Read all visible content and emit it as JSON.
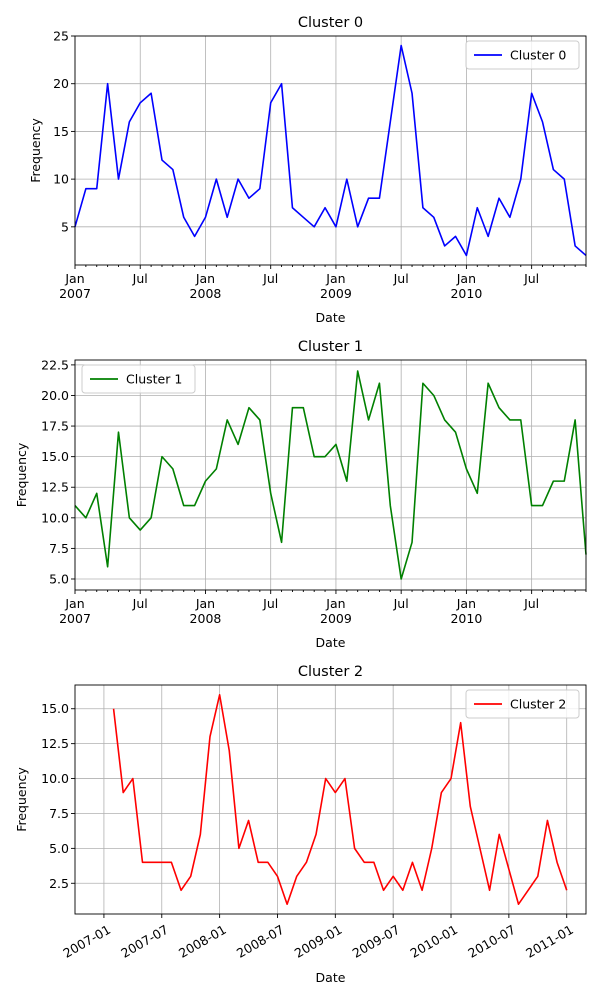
{
  "chart_data": [
    {
      "type": "line",
      "title": "Cluster 0",
      "xlabel": "Date",
      "ylabel": "Frequency",
      "x_axis_style": "monthly",
      "x_range": [
        "2007-01",
        "2010-12"
      ],
      "ylim": [
        1,
        25
      ],
      "yticks": [
        5,
        10,
        15,
        20,
        25
      ],
      "ytick_labels": [
        "5",
        "10",
        "15",
        "20",
        "25"
      ],
      "xticks": [
        {
          "date": "2007-01",
          "label": [
            "Jan",
            "2007"
          ]
        },
        {
          "date": "2007-07",
          "label": [
            "Jul"
          ]
        },
        {
          "date": "2008-01",
          "label": [
            "Jan",
            "2008"
          ]
        },
        {
          "date": "2008-07",
          "label": [
            "Jul"
          ]
        },
        {
          "date": "2009-01",
          "label": [
            "Jan",
            "2009"
          ]
        },
        {
          "date": "2009-07",
          "label": [
            "Jul"
          ]
        },
        {
          "date": "2010-01",
          "label": [
            "Jan",
            "2010"
          ]
        },
        {
          "date": "2010-07",
          "label": [
            "Jul"
          ]
        }
      ],
      "grid": true,
      "legend": "upper-right",
      "series": [
        {
          "name": "Cluster 0",
          "color": "#0000ff",
          "x": [
            "2007-01",
            "2007-02",
            "2007-03",
            "2007-04",
            "2007-05",
            "2007-06",
            "2007-07",
            "2007-08",
            "2007-09",
            "2007-10",
            "2007-11",
            "2007-12",
            "2008-01",
            "2008-02",
            "2008-03",
            "2008-04",
            "2008-05",
            "2008-06",
            "2008-07",
            "2008-08",
            "2008-09",
            "2008-10",
            "2008-11",
            "2008-12",
            "2009-01",
            "2009-02",
            "2009-03",
            "2009-04",
            "2009-05",
            "2009-06",
            "2009-07",
            "2009-08",
            "2009-09",
            "2009-10",
            "2009-11",
            "2009-12",
            "2010-01",
            "2010-02",
            "2010-03",
            "2010-04",
            "2010-05",
            "2010-06",
            "2010-07",
            "2010-08",
            "2010-09",
            "2010-10",
            "2010-11",
            "2010-12"
          ],
          "values": [
            5,
            9,
            9,
            20,
            10,
            16,
            18,
            19,
            12,
            11,
            6,
            4,
            6,
            10,
            6,
            10,
            8,
            9,
            18,
            20,
            7,
            6,
            5,
            7,
            5,
            10,
            5,
            8,
            8,
            16,
            24,
            19,
            7,
            6,
            3,
            4,
            2,
            7,
            4,
            8,
            6,
            10,
            19,
            16,
            11,
            10,
            3,
            2
          ]
        }
      ]
    },
    {
      "type": "line",
      "title": "Cluster 1",
      "xlabel": "Date",
      "ylabel": "Frequency",
      "x_axis_style": "monthly",
      "x_range": [
        "2007-01",
        "2010-12"
      ],
      "ylim": [
        4.1,
        22.9
      ],
      "yticks": [
        5,
        7.5,
        10,
        12.5,
        15,
        17.5,
        20,
        22.5
      ],
      "ytick_labels": [
        "5.0",
        "7.5",
        "10.0",
        "12.5",
        "15.0",
        "17.5",
        "20.0",
        "22.5"
      ],
      "xticks": [
        {
          "date": "2007-01",
          "label": [
            "Jan",
            "2007"
          ]
        },
        {
          "date": "2007-07",
          "label": [
            "Jul"
          ]
        },
        {
          "date": "2008-01",
          "label": [
            "Jan",
            "2008"
          ]
        },
        {
          "date": "2008-07",
          "label": [
            "Jul"
          ]
        },
        {
          "date": "2009-01",
          "label": [
            "Jan",
            "2009"
          ]
        },
        {
          "date": "2009-07",
          "label": [
            "Jul"
          ]
        },
        {
          "date": "2010-01",
          "label": [
            "Jan",
            "2010"
          ]
        },
        {
          "date": "2010-07",
          "label": [
            "Jul"
          ]
        }
      ],
      "grid": true,
      "legend": "upper-left",
      "series": [
        {
          "name": "Cluster 1",
          "color": "#008000",
          "x": [
            "2007-01",
            "2007-02",
            "2007-03",
            "2007-04",
            "2007-05",
            "2007-06",
            "2007-07",
            "2007-08",
            "2007-09",
            "2007-10",
            "2007-11",
            "2007-12",
            "2008-01",
            "2008-02",
            "2008-03",
            "2008-04",
            "2008-05",
            "2008-06",
            "2008-07",
            "2008-08",
            "2008-09",
            "2008-10",
            "2008-11",
            "2008-12",
            "2009-01",
            "2009-02",
            "2009-03",
            "2009-04",
            "2009-05",
            "2009-06",
            "2009-07",
            "2009-08",
            "2009-09",
            "2009-10",
            "2009-11",
            "2009-12",
            "2010-01",
            "2010-02",
            "2010-03",
            "2010-04",
            "2010-05",
            "2010-06",
            "2010-07",
            "2010-08",
            "2010-09",
            "2010-10",
            "2010-11",
            "2010-12"
          ],
          "values": [
            11,
            10,
            12,
            6,
            17,
            10,
            9,
            10,
            15,
            14,
            11,
            11,
            13,
            14,
            18,
            16,
            19,
            18,
            12,
            8,
            19,
            19,
            15,
            15,
            16,
            13,
            22,
            18,
            21,
            11,
            5,
            8,
            21,
            20,
            18,
            17,
            14,
            12,
            21,
            19,
            18,
            18,
            11,
            11,
            13,
            13,
            18,
            7
          ]
        }
      ]
    },
    {
      "type": "line",
      "title": "Cluster 2",
      "xlabel": "Date",
      "ylabel": "Frequency",
      "x_axis_style": "rotated",
      "x_range": [
        "2006-10",
        "2011-03"
      ],
      "ylim": [
        0.3,
        16.7
      ],
      "yticks": [
        2.5,
        5,
        7.5,
        10,
        12.5,
        15
      ],
      "ytick_labels": [
        "2.5",
        "5.0",
        "7.5",
        "10.0",
        "12.5",
        "15.0"
      ],
      "xticks": [
        {
          "date": "2007-01",
          "label": [
            "2007-01"
          ]
        },
        {
          "date": "2007-07",
          "label": [
            "2007-07"
          ]
        },
        {
          "date": "2008-01",
          "label": [
            "2008-01"
          ]
        },
        {
          "date": "2008-07",
          "label": [
            "2008-07"
          ]
        },
        {
          "date": "2009-01",
          "label": [
            "2009-01"
          ]
        },
        {
          "date": "2009-07",
          "label": [
            "2009-07"
          ]
        },
        {
          "date": "2010-01",
          "label": [
            "2010-01"
          ]
        },
        {
          "date": "2010-07",
          "label": [
            "2010-07"
          ]
        },
        {
          "date": "2011-01",
          "label": [
            "2011-01"
          ]
        }
      ],
      "grid": true,
      "legend": "upper-right",
      "series": [
        {
          "name": "Cluster 2",
          "color": "#ff0000",
          "x": [
            "2007-02",
            "2007-03",
            "2007-04",
            "2007-05",
            "2007-06",
            "2007-07",
            "2007-08",
            "2007-09",
            "2007-10",
            "2007-11",
            "2007-12",
            "2008-01",
            "2008-02",
            "2008-03",
            "2008-04",
            "2008-05",
            "2008-06",
            "2008-07",
            "2008-08",
            "2008-09",
            "2008-10",
            "2008-11",
            "2008-12",
            "2009-01",
            "2009-02",
            "2009-03",
            "2009-04",
            "2009-05",
            "2009-06",
            "2009-07",
            "2009-08",
            "2009-09",
            "2009-10",
            "2009-11",
            "2009-12",
            "2010-01",
            "2010-02",
            "2010-03",
            "2010-04",
            "2010-05",
            "2010-06",
            "2010-08",
            "2010-10",
            "2010-11",
            "2010-12",
            "2011-01"
          ],
          "values": [
            15,
            9,
            10,
            4,
            4,
            4,
            4,
            2,
            3,
            6,
            13,
            16,
            12,
            5,
            7,
            4,
            4,
            3,
            1,
            3,
            4,
            6,
            10,
            9,
            10,
            5,
            4,
            4,
            2,
            3,
            2,
            4,
            2,
            5,
            9,
            10,
            14,
            8,
            5,
            2,
            6,
            1,
            3,
            7,
            4,
            2
          ]
        }
      ]
    }
  ]
}
